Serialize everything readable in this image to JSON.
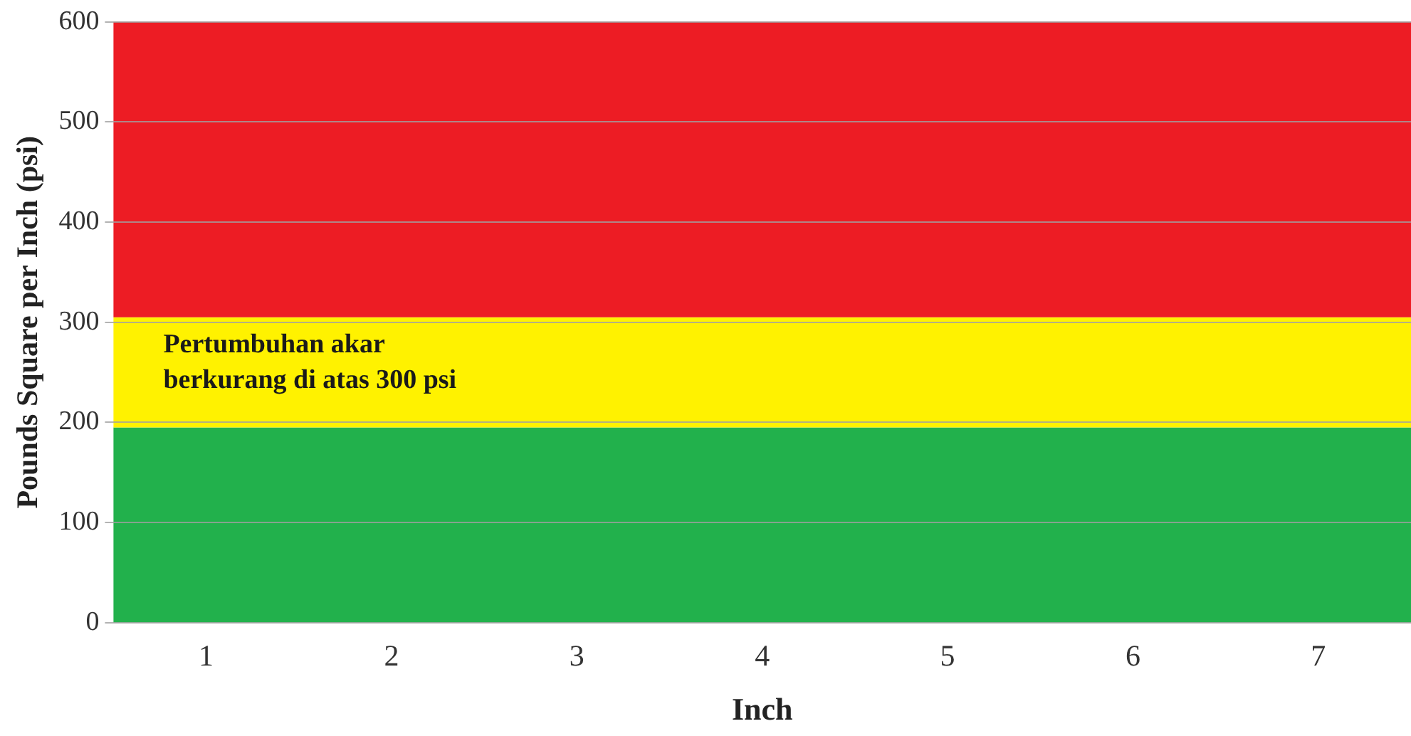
{
  "chart_data": {
    "type": "bar",
    "xlabel": "Inch",
    "ylabel": "Pounds Square per Inch (psi)",
    "categories": [
      "1",
      "2",
      "3",
      "4",
      "5",
      "6",
      "7"
    ],
    "bands": [
      {
        "axis": "y",
        "from": 0,
        "to": 195,
        "color": "#22b14c"
      },
      {
        "axis": "y",
        "from": 195,
        "to": 305,
        "color": "#fff200"
      },
      {
        "axis": "y",
        "from": 305,
        "to": 600,
        "color": "#ed1c24"
      }
    ],
    "ylim": [
      0,
      600
    ],
    "yticks": [
      0,
      100,
      200,
      300,
      400,
      500,
      600
    ],
    "grid": "y",
    "legend": false,
    "annotations": [
      "Pertumbuhan akar\nberkurang di atas 300 psi"
    ]
  }
}
